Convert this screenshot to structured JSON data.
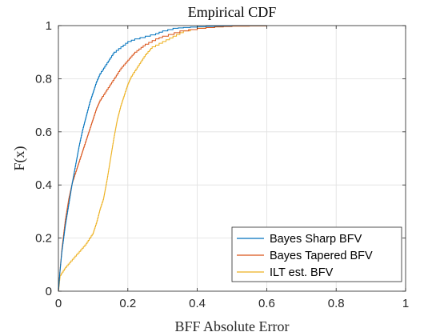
{
  "chart_data": {
    "type": "line",
    "title": "Empirical CDF",
    "xlabel": "BFF Absolute Error",
    "ylabel": "F(x)",
    "xlim": [
      0,
      1
    ],
    "ylim": [
      0,
      1
    ],
    "xticks": [
      "0",
      "0.2",
      "0.4",
      "0.6",
      "0.8",
      "1"
    ],
    "yticks": [
      "0",
      "0.2",
      "0.4",
      "0.6",
      "0.8",
      "1"
    ],
    "grid": true,
    "legend_position": "bottom-right",
    "series": [
      {
        "name": "Bayes Sharp BFV",
        "color": "#0072BD",
        "x": [
          0,
          0.004,
          0.01,
          0.02,
          0.03,
          0.04,
          0.05,
          0.06,
          0.07,
          0.08,
          0.09,
          0.1,
          0.11,
          0.12,
          0.13,
          0.14,
          0.15,
          0.16,
          0.18,
          0.2,
          0.22,
          0.25,
          0.28,
          0.3,
          0.33,
          0.36,
          0.4,
          0.45,
          0.5,
          0.6
        ],
        "y": [
          0.0,
          0.07,
          0.15,
          0.25,
          0.33,
          0.41,
          0.48,
          0.55,
          0.61,
          0.66,
          0.71,
          0.75,
          0.79,
          0.82,
          0.84,
          0.86,
          0.88,
          0.9,
          0.92,
          0.94,
          0.95,
          0.96,
          0.97,
          0.98,
          0.99,
          0.993,
          0.996,
          0.998,
          1.0,
          1.0
        ]
      },
      {
        "name": "Bayes Tapered BFV",
        "color": "#D95319",
        "x": [
          0,
          0.004,
          0.01,
          0.02,
          0.03,
          0.04,
          0.05,
          0.06,
          0.07,
          0.08,
          0.09,
          0.1,
          0.11,
          0.12,
          0.13,
          0.14,
          0.15,
          0.16,
          0.17,
          0.18,
          0.2,
          0.22,
          0.25,
          0.28,
          0.3,
          0.35,
          0.4,
          0.45,
          0.5,
          0.6
        ],
        "y": [
          0.0,
          0.07,
          0.16,
          0.27,
          0.35,
          0.41,
          0.45,
          0.49,
          0.53,
          0.57,
          0.61,
          0.65,
          0.69,
          0.72,
          0.74,
          0.76,
          0.78,
          0.8,
          0.82,
          0.84,
          0.87,
          0.9,
          0.93,
          0.95,
          0.96,
          0.98,
          0.99,
          0.995,
          0.998,
          1.0
        ]
      },
      {
        "name": "ILT est. BFV",
        "color": "#EDB120",
        "x": [
          0,
          0.005,
          0.02,
          0.04,
          0.06,
          0.08,
          0.1,
          0.11,
          0.12,
          0.13,
          0.14,
          0.15,
          0.16,
          0.17,
          0.18,
          0.19,
          0.2,
          0.21,
          0.22,
          0.23,
          0.24,
          0.25,
          0.27,
          0.3,
          0.33,
          0.36,
          0.4,
          0.45,
          0.5,
          0.6
        ],
        "y": [
          0.0,
          0.06,
          0.09,
          0.12,
          0.15,
          0.18,
          0.22,
          0.26,
          0.31,
          0.35,
          0.42,
          0.5,
          0.58,
          0.65,
          0.7,
          0.74,
          0.78,
          0.81,
          0.83,
          0.85,
          0.87,
          0.89,
          0.92,
          0.94,
          0.96,
          0.98,
          0.99,
          0.995,
          0.998,
          1.0
        ]
      }
    ]
  }
}
